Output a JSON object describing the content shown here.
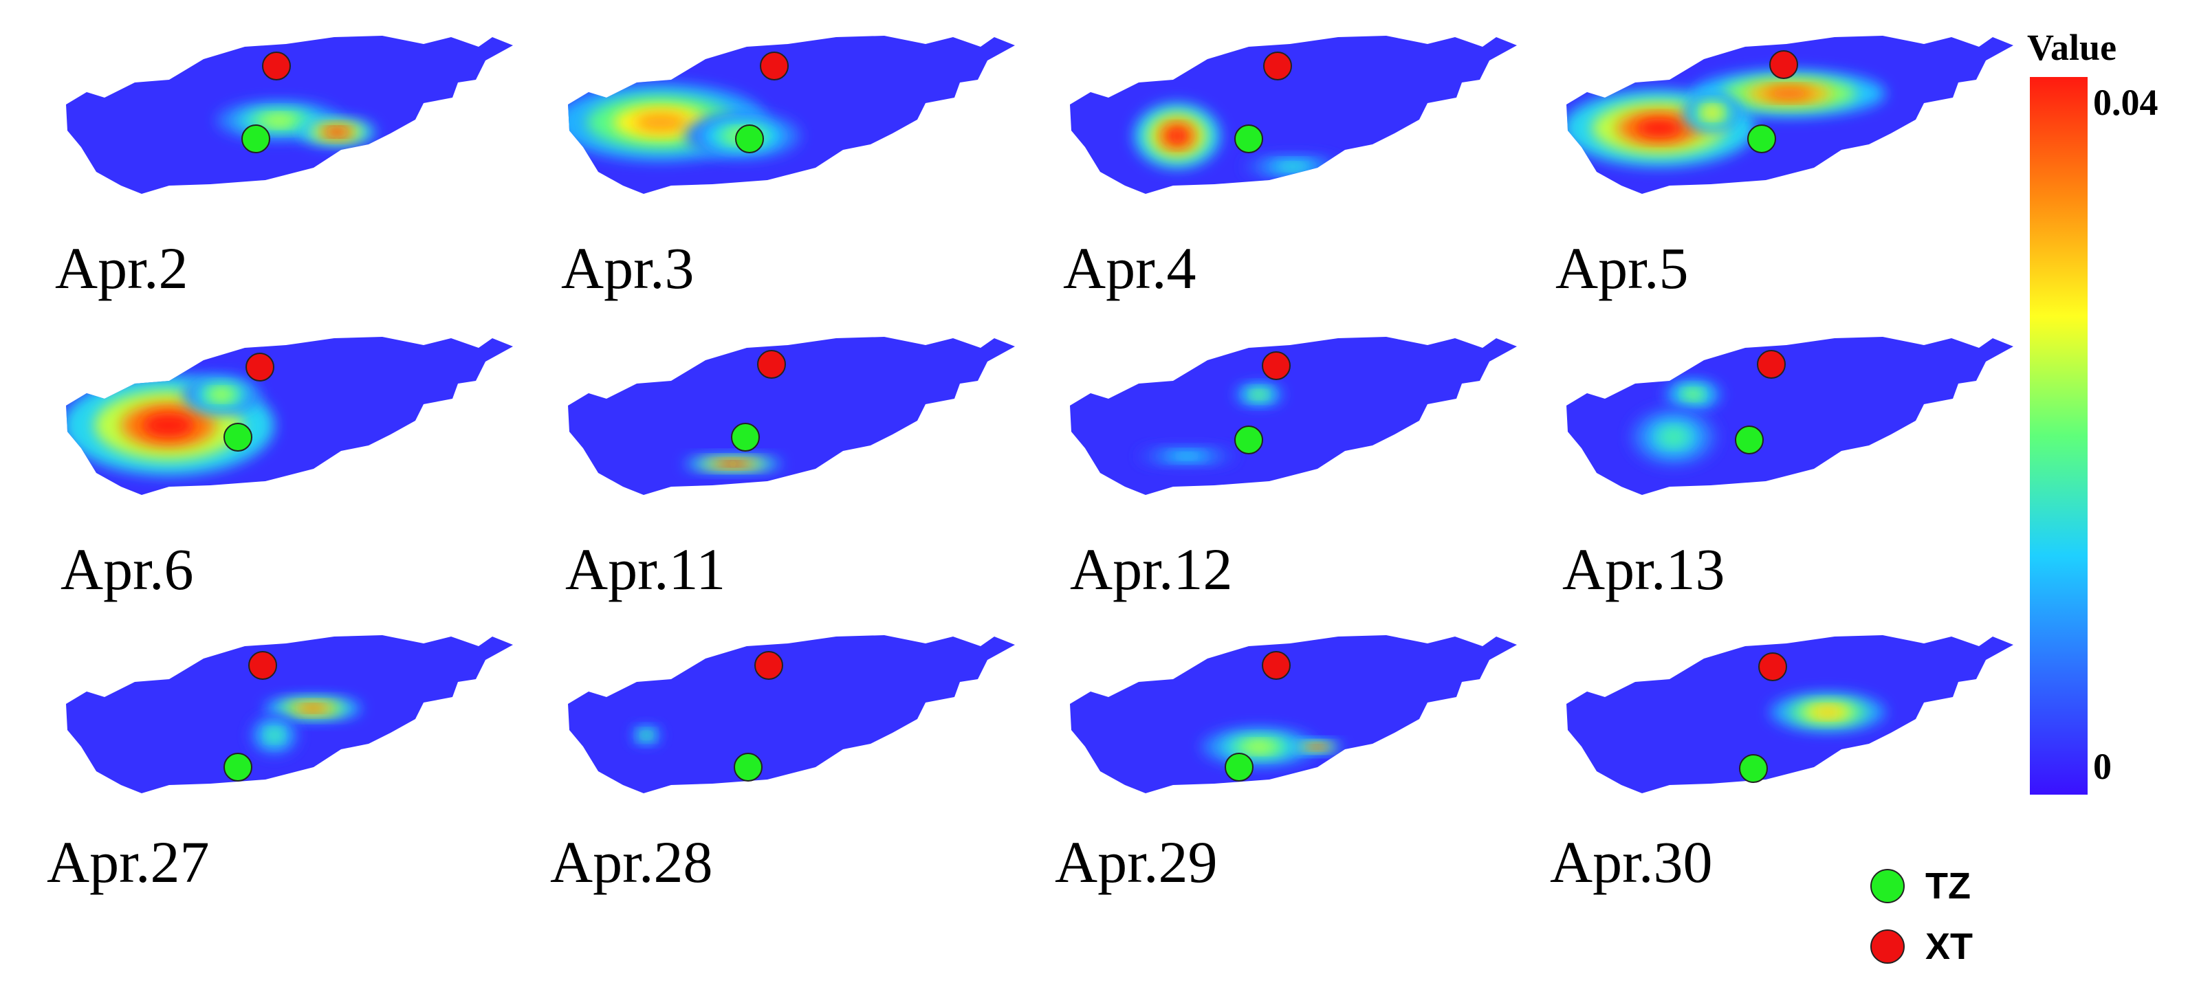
{
  "panels": [
    {
      "date": "Apr.2",
      "hotspots": [
        [
          0.5,
          0.54,
          0.13,
          0.1,
          0.6
        ],
        [
          0.62,
          0.6,
          0.08,
          0.07,
          1.0
        ]
      ]
    },
    {
      "date": "Apr.3",
      "hotspots": [
        [
          0.25,
          0.55,
          0.22,
          0.2,
          0.8
        ],
        [
          0.42,
          0.62,
          0.12,
          0.12,
          0.55
        ]
      ]
    },
    {
      "date": "Apr.4",
      "hotspots": [
        [
          0.28,
          0.62,
          0.09,
          0.17,
          1.0
        ],
        [
          0.52,
          0.78,
          0.1,
          0.06,
          0.4
        ]
      ]
    },
    {
      "date": "Apr.5",
      "hotspots": [
        [
          0.25,
          0.58,
          0.2,
          0.2,
          1.0
        ],
        [
          0.52,
          0.4,
          0.2,
          0.12,
          0.9
        ],
        [
          0.36,
          0.5,
          0.06,
          0.1,
          0.7
        ]
      ]
    },
    {
      "date": "Apr.6",
      "hotspots": [
        [
          0.27,
          0.56,
          0.22,
          0.26,
          1.0
        ],
        [
          0.38,
          0.4,
          0.08,
          0.1,
          0.6
        ]
      ]
    },
    {
      "date": "Apr.11",
      "hotspots": [
        [
          0.4,
          0.76,
          0.1,
          0.04,
          1.0
        ]
      ]
    },
    {
      "date": "Apr.12",
      "hotspots": [
        [
          0.45,
          0.4,
          0.05,
          0.06,
          0.55
        ],
        [
          0.3,
          0.72,
          0.1,
          0.05,
          0.35
        ]
      ]
    },
    {
      "date": "Apr.13",
      "hotspots": [
        [
          0.32,
          0.4,
          0.06,
          0.08,
          0.55
        ],
        [
          0.28,
          0.62,
          0.09,
          0.15,
          0.45
        ]
      ]
    },
    {
      "date": "Apr.27",
      "hotspots": [
        [
          0.57,
          0.48,
          0.1,
          0.06,
          0.9
        ],
        [
          0.49,
          0.62,
          0.05,
          0.1,
          0.45
        ]
      ]
    },
    {
      "date": "Apr.28",
      "hotspots": [
        [
          0.22,
          0.62,
          0.03,
          0.05,
          0.5
        ]
      ]
    },
    {
      "date": "Apr.29",
      "hotspots": [
        [
          0.45,
          0.68,
          0.12,
          0.1,
          0.6
        ],
        [
          0.57,
          0.68,
          0.05,
          0.03,
          1.0
        ]
      ]
    },
    {
      "date": "Apr.30",
      "hotspots": [
        [
          0.6,
          0.5,
          0.12,
          0.1,
          0.75
        ]
      ]
    }
  ],
  "colorbar": {
    "title": "Value",
    "max_label": "0.04",
    "min_label": "0",
    "colormap": [
      "#3a10ff",
      "#2f6bff",
      "#1fd0ff",
      "#5fff7a",
      "#ffff20",
      "#ff8a10",
      "#ff1a10"
    ]
  },
  "legend": [
    {
      "label": "TZ",
      "color": "#22ee22"
    },
    {
      "label": "XT",
      "color": "#ee1111"
    }
  ],
  "markers": {
    "TZ": {
      "color": "#22ee22"
    },
    "XT": {
      "color": "#ee1111"
    }
  }
}
